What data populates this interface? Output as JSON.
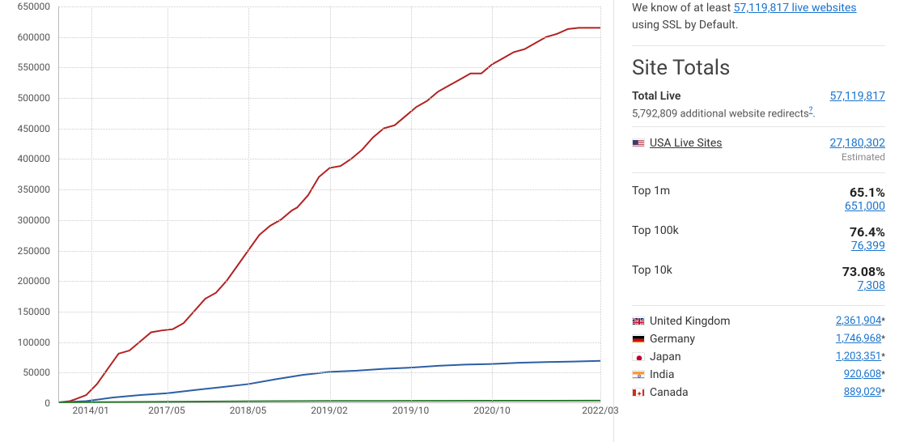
{
  "chart": {
    "type": "line",
    "y_axis": {
      "min": 0,
      "max": 650000,
      "ticks": [
        0,
        50000,
        100000,
        150000,
        200000,
        250000,
        300000,
        350000,
        400000,
        450000,
        500000,
        550000,
        600000,
        650000
      ],
      "tick_fontsize": 12,
      "label_color": "#555555"
    },
    "x_axis": {
      "labels": [
        "2014/01",
        "2017/05",
        "2018/05",
        "2019/02",
        "2019/10",
        "2020/10",
        "2022/03"
      ],
      "positions_pct": [
        6,
        20,
        35,
        50,
        65,
        80,
        100
      ],
      "tick_fontsize": 12,
      "label_color": "#555555"
    },
    "grid_color": "#cccccc",
    "axis_color": "#bbbbbb",
    "background_color": "#ffffff",
    "vgrid_positions_pct": [
      6,
      20,
      35,
      50,
      65,
      80,
      100
    ],
    "series": [
      {
        "name": "red",
        "color": "#b22222",
        "width": 2,
        "points": [
          [
            0,
            0
          ],
          [
            2,
            2000
          ],
          [
            3,
            5000
          ],
          [
            5,
            12000
          ],
          [
            7,
            30000
          ],
          [
            9,
            55000
          ],
          [
            11,
            80000
          ],
          [
            13,
            85000
          ],
          [
            15,
            100000
          ],
          [
            17,
            115000
          ],
          [
            19,
            118000
          ],
          [
            21,
            120000
          ],
          [
            23,
            130000
          ],
          [
            25,
            150000
          ],
          [
            27,
            170000
          ],
          [
            29,
            180000
          ],
          [
            31,
            200000
          ],
          [
            33,
            225000
          ],
          [
            35,
            250000
          ],
          [
            37,
            275000
          ],
          [
            39,
            290000
          ],
          [
            41,
            300000
          ],
          [
            43,
            315000
          ],
          [
            44,
            320000
          ],
          [
            46,
            340000
          ],
          [
            48,
            370000
          ],
          [
            50,
            385000
          ],
          [
            52,
            388000
          ],
          [
            54,
            400000
          ],
          [
            56,
            415000
          ],
          [
            58,
            435000
          ],
          [
            60,
            450000
          ],
          [
            62,
            455000
          ],
          [
            64,
            470000
          ],
          [
            66,
            485000
          ],
          [
            68,
            495000
          ],
          [
            70,
            510000
          ],
          [
            72,
            520000
          ],
          [
            74,
            530000
          ],
          [
            76,
            540000
          ],
          [
            78,
            540000
          ],
          [
            80,
            555000
          ],
          [
            82,
            565000
          ],
          [
            84,
            575000
          ],
          [
            86,
            580000
          ],
          [
            88,
            590000
          ],
          [
            90,
            600000
          ],
          [
            92,
            605000
          ],
          [
            94,
            613000
          ],
          [
            96,
            615000
          ],
          [
            98,
            615000
          ],
          [
            100,
            615000
          ]
        ]
      },
      {
        "name": "blue",
        "color": "#2b5fa3",
        "width": 2,
        "points": [
          [
            0,
            0
          ],
          [
            5,
            2000
          ],
          [
            10,
            8000
          ],
          [
            15,
            12000
          ],
          [
            20,
            15000
          ],
          [
            25,
            20000
          ],
          [
            30,
            25000
          ],
          [
            35,
            30000
          ],
          [
            40,
            38000
          ],
          [
            45,
            45000
          ],
          [
            50,
            50000
          ],
          [
            55,
            52000
          ],
          [
            60,
            55000
          ],
          [
            65,
            57000
          ],
          [
            70,
            60000
          ],
          [
            75,
            62000
          ],
          [
            80,
            63000
          ],
          [
            85,
            65000
          ],
          [
            90,
            66000
          ],
          [
            95,
            67000
          ],
          [
            100,
            68000
          ]
        ]
      },
      {
        "name": "green",
        "color": "#2e7d32",
        "width": 2,
        "points": [
          [
            0,
            0
          ],
          [
            10,
            500
          ],
          [
            20,
            1000
          ],
          [
            30,
            1500
          ],
          [
            40,
            2000
          ],
          [
            50,
            2200
          ],
          [
            60,
            2400
          ],
          [
            70,
            2500
          ],
          [
            80,
            2600
          ],
          [
            90,
            2700
          ],
          [
            100,
            2800
          ]
        ]
      }
    ]
  },
  "intro": {
    "prefix": "We know of at least ",
    "count": "57,119,817 live websites",
    "suffix": " using SSL by Default."
  },
  "totals_heading": "Site Totals",
  "total_live": {
    "label": "Total Live",
    "value": "57,119,817"
  },
  "redirects": {
    "prefix": "5,792,809 additional website redirects",
    "sup": "?",
    "suffix": "."
  },
  "usa": {
    "label": "USA Live Sites",
    "value": "27,180,302",
    "note": "Estimated"
  },
  "tiers": [
    {
      "label": "Top 1m",
      "pct": "65.1%",
      "count": "651,000"
    },
    {
      "label": "Top 100k",
      "pct": "76.4%",
      "count": "76,399"
    },
    {
      "label": "Top 10k",
      "pct": "73.08%",
      "count": "7,308"
    }
  ],
  "countries": [
    {
      "code": "gb",
      "name": "United Kingdom",
      "value": "2,361,904"
    },
    {
      "code": "de",
      "name": "Germany",
      "value": "1,746,968"
    },
    {
      "code": "jp",
      "name": "Japan",
      "value": "1,203,351"
    },
    {
      "code": "in",
      "name": "India",
      "value": "920,608"
    },
    {
      "code": "ca",
      "name": "Canada",
      "value": "889,029"
    }
  ],
  "colors": {
    "link": "#1a73cc",
    "text": "#333333",
    "muted": "#888888",
    "border": "#e5e5e5"
  }
}
